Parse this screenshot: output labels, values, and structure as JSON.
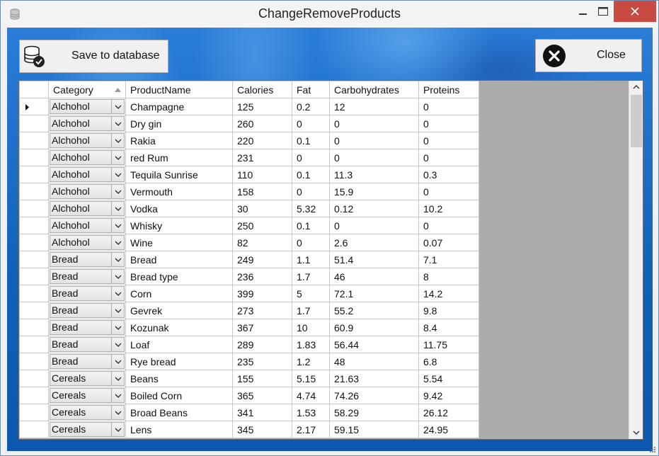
{
  "window": {
    "title": "ChangeRemoveProducts"
  },
  "toolbar": {
    "save_label": "Save to database",
    "close_label": "Close"
  },
  "grid": {
    "columns": [
      "Category",
      "ProductName",
      "Calories",
      "Fat",
      "Carbohydrates",
      "Proteins"
    ],
    "rows": [
      {
        "category": "Alchohol",
        "name": "Champagne",
        "calories": "125",
        "fat": "0.2",
        "carbs": "12",
        "proteins": "0"
      },
      {
        "category": "Alchohol",
        "name": "Dry gin",
        "calories": "260",
        "fat": "0",
        "carbs": "0",
        "proteins": "0"
      },
      {
        "category": "Alchohol",
        "name": "Rakia",
        "calories": "220",
        "fat": "0.1",
        "carbs": "0",
        "proteins": "0"
      },
      {
        "category": "Alchohol",
        "name": "red Rum",
        "calories": "231",
        "fat": "0",
        "carbs": "0",
        "proteins": "0"
      },
      {
        "category": "Alchohol",
        "name": "Tequila Sunrise",
        "calories": "110",
        "fat": "0.1",
        "carbs": "11.3",
        "proteins": "0.3"
      },
      {
        "category": "Alchohol",
        "name": "Vermouth",
        "calories": "158",
        "fat": "0",
        "carbs": "15.9",
        "proteins": "0"
      },
      {
        "category": "Alchohol",
        "name": "Vodka",
        "calories": "30",
        "fat": "5.32",
        "carbs": "0.12",
        "proteins": "10.2"
      },
      {
        "category": "Alchohol",
        "name": "Whisky",
        "calories": "250",
        "fat": "0.1",
        "carbs": "0",
        "proteins": "0"
      },
      {
        "category": "Alchohol",
        "name": "Wine",
        "calories": "82",
        "fat": "0",
        "carbs": "2.6",
        "proteins": "0.07"
      },
      {
        "category": "Bread",
        "name": "Bread",
        "calories": "249",
        "fat": "1.1",
        "carbs": "51.4",
        "proteins": "7.1"
      },
      {
        "category": "Bread",
        "name": "Bread type",
        "calories": "236",
        "fat": "1.7",
        "carbs": "46",
        "proteins": "8"
      },
      {
        "category": "Bread",
        "name": "Corn",
        "calories": "399",
        "fat": "5",
        "carbs": "72.1",
        "proteins": "14.2"
      },
      {
        "category": "Bread",
        "name": "Gevrek",
        "calories": "273",
        "fat": "1.7",
        "carbs": "55.2",
        "proteins": "9.8"
      },
      {
        "category": "Bread",
        "name": "Kozunak",
        "calories": "367",
        "fat": "10",
        "carbs": "60.9",
        "proteins": "8.4"
      },
      {
        "category": "Bread",
        "name": "Loaf",
        "calories": "289",
        "fat": "1.83",
        "carbs": "56.44",
        "proteins": "11.75"
      },
      {
        "category": "Bread",
        "name": "Rye bread",
        "calories": "235",
        "fat": "1.2",
        "carbs": "48",
        "proteins": "6.8"
      },
      {
        "category": "Cereals",
        "name": "Beans",
        "calories": "155",
        "fat": "5.15",
        "carbs": "21.63",
        "proteins": "5.54"
      },
      {
        "category": "Cereals",
        "name": "Boiled Corn",
        "calories": "365",
        "fat": "4.74",
        "carbs": "74.26",
        "proteins": "9.42"
      },
      {
        "category": "Cereals",
        "name": "Broad Beans",
        "calories": "341",
        "fat": "1.53",
        "carbs": "58.29",
        "proteins": "26.12"
      },
      {
        "category": "Cereals",
        "name": "Lens",
        "calories": "345",
        "fat": "2.17",
        "carbs": "59.15",
        "proteins": "24.95"
      }
    ]
  },
  "icons": {
    "app": "database-icon",
    "save": "database-check-icon",
    "close": "close-circle-icon"
  },
  "colors": {
    "titlebar_close": "#c94a42",
    "background_accent": "#1b6ec4"
  }
}
